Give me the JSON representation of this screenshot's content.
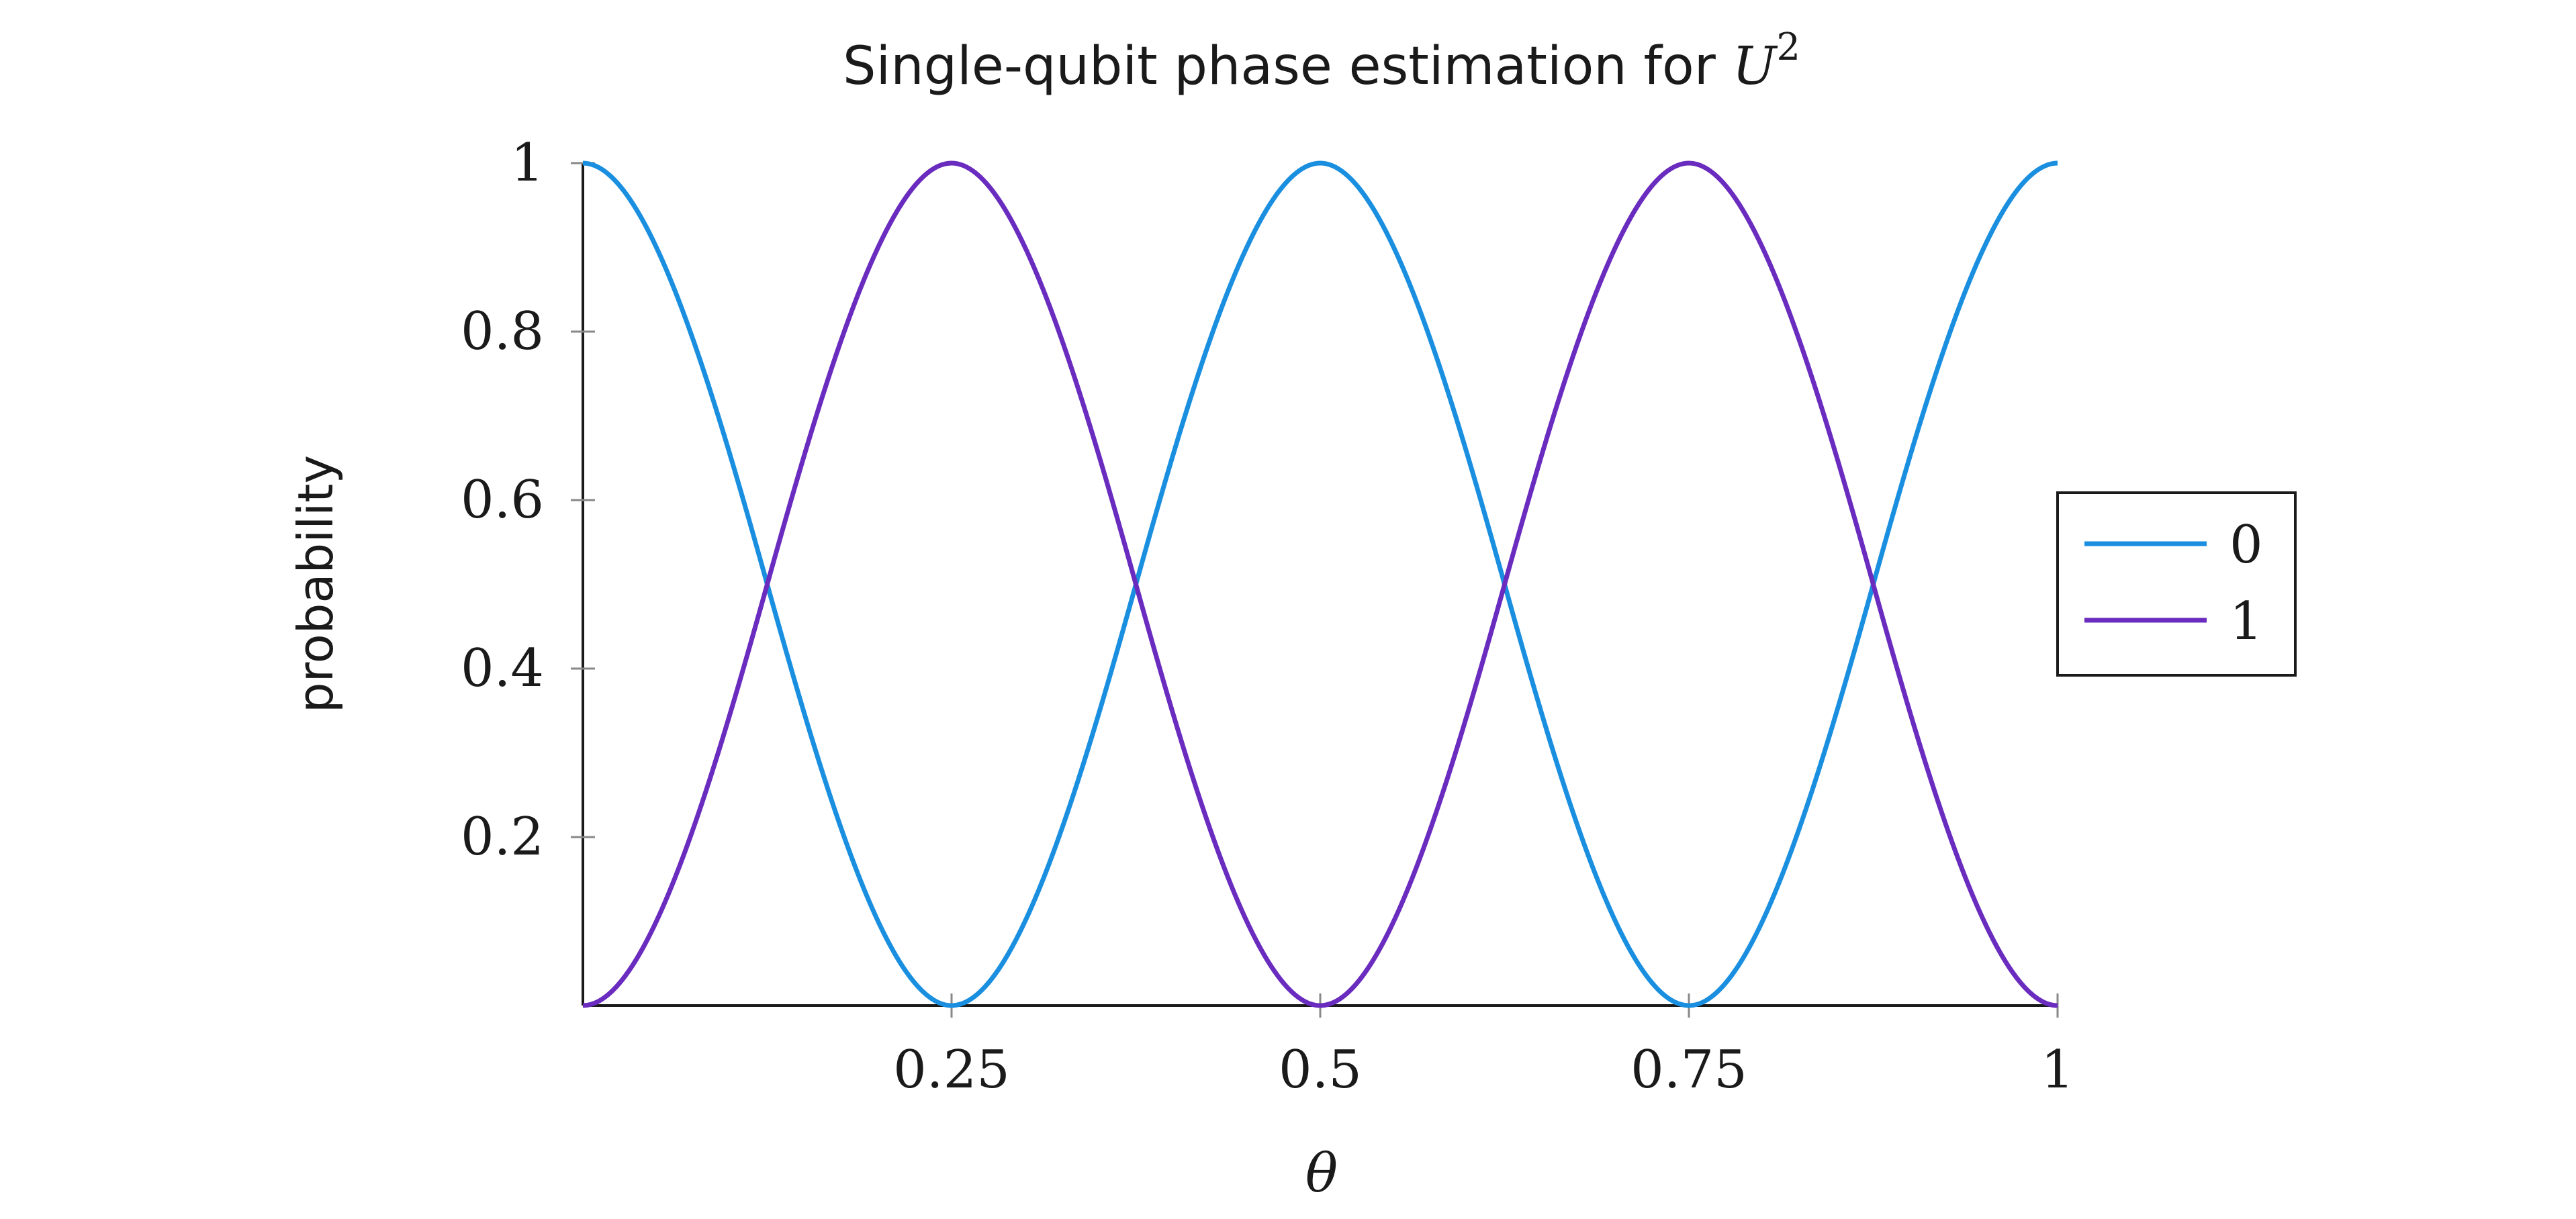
{
  "chart_data": {
    "type": "line",
    "title": {
      "prefix": "Single-qubit phase estimation for ",
      "math": "U",
      "superscript": "2"
    },
    "xlabel": "θ",
    "ylabel": "probability",
    "xlim": [
      0,
      1
    ],
    "ylim": [
      0,
      1
    ],
    "x_ticks": [
      0.25,
      0.5,
      0.75,
      1
    ],
    "x_tick_labels": [
      "0.25",
      "0.5",
      "0.75",
      "1"
    ],
    "y_ticks": [
      0.2,
      0.4,
      0.6,
      0.8,
      1
    ],
    "y_tick_labels": [
      "0.2",
      "0.4",
      "0.6",
      "0.8",
      "1"
    ],
    "grid": false,
    "legend_position": "right",
    "x": [
      0,
      0.125,
      0.25,
      0.375,
      0.5,
      0.625,
      0.75,
      0.875,
      1
    ],
    "series": [
      {
        "name": "0",
        "color": "#1a8fe0",
        "values": [
          1,
          0.5,
          0,
          0.5,
          1,
          0.5,
          0,
          0.5,
          1
        ]
      },
      {
        "name": "1",
        "color": "#6a2bbf",
        "values": [
          0,
          0.5,
          1,
          0.5,
          0,
          0.5,
          1,
          0.5,
          0
        ]
      }
    ]
  }
}
